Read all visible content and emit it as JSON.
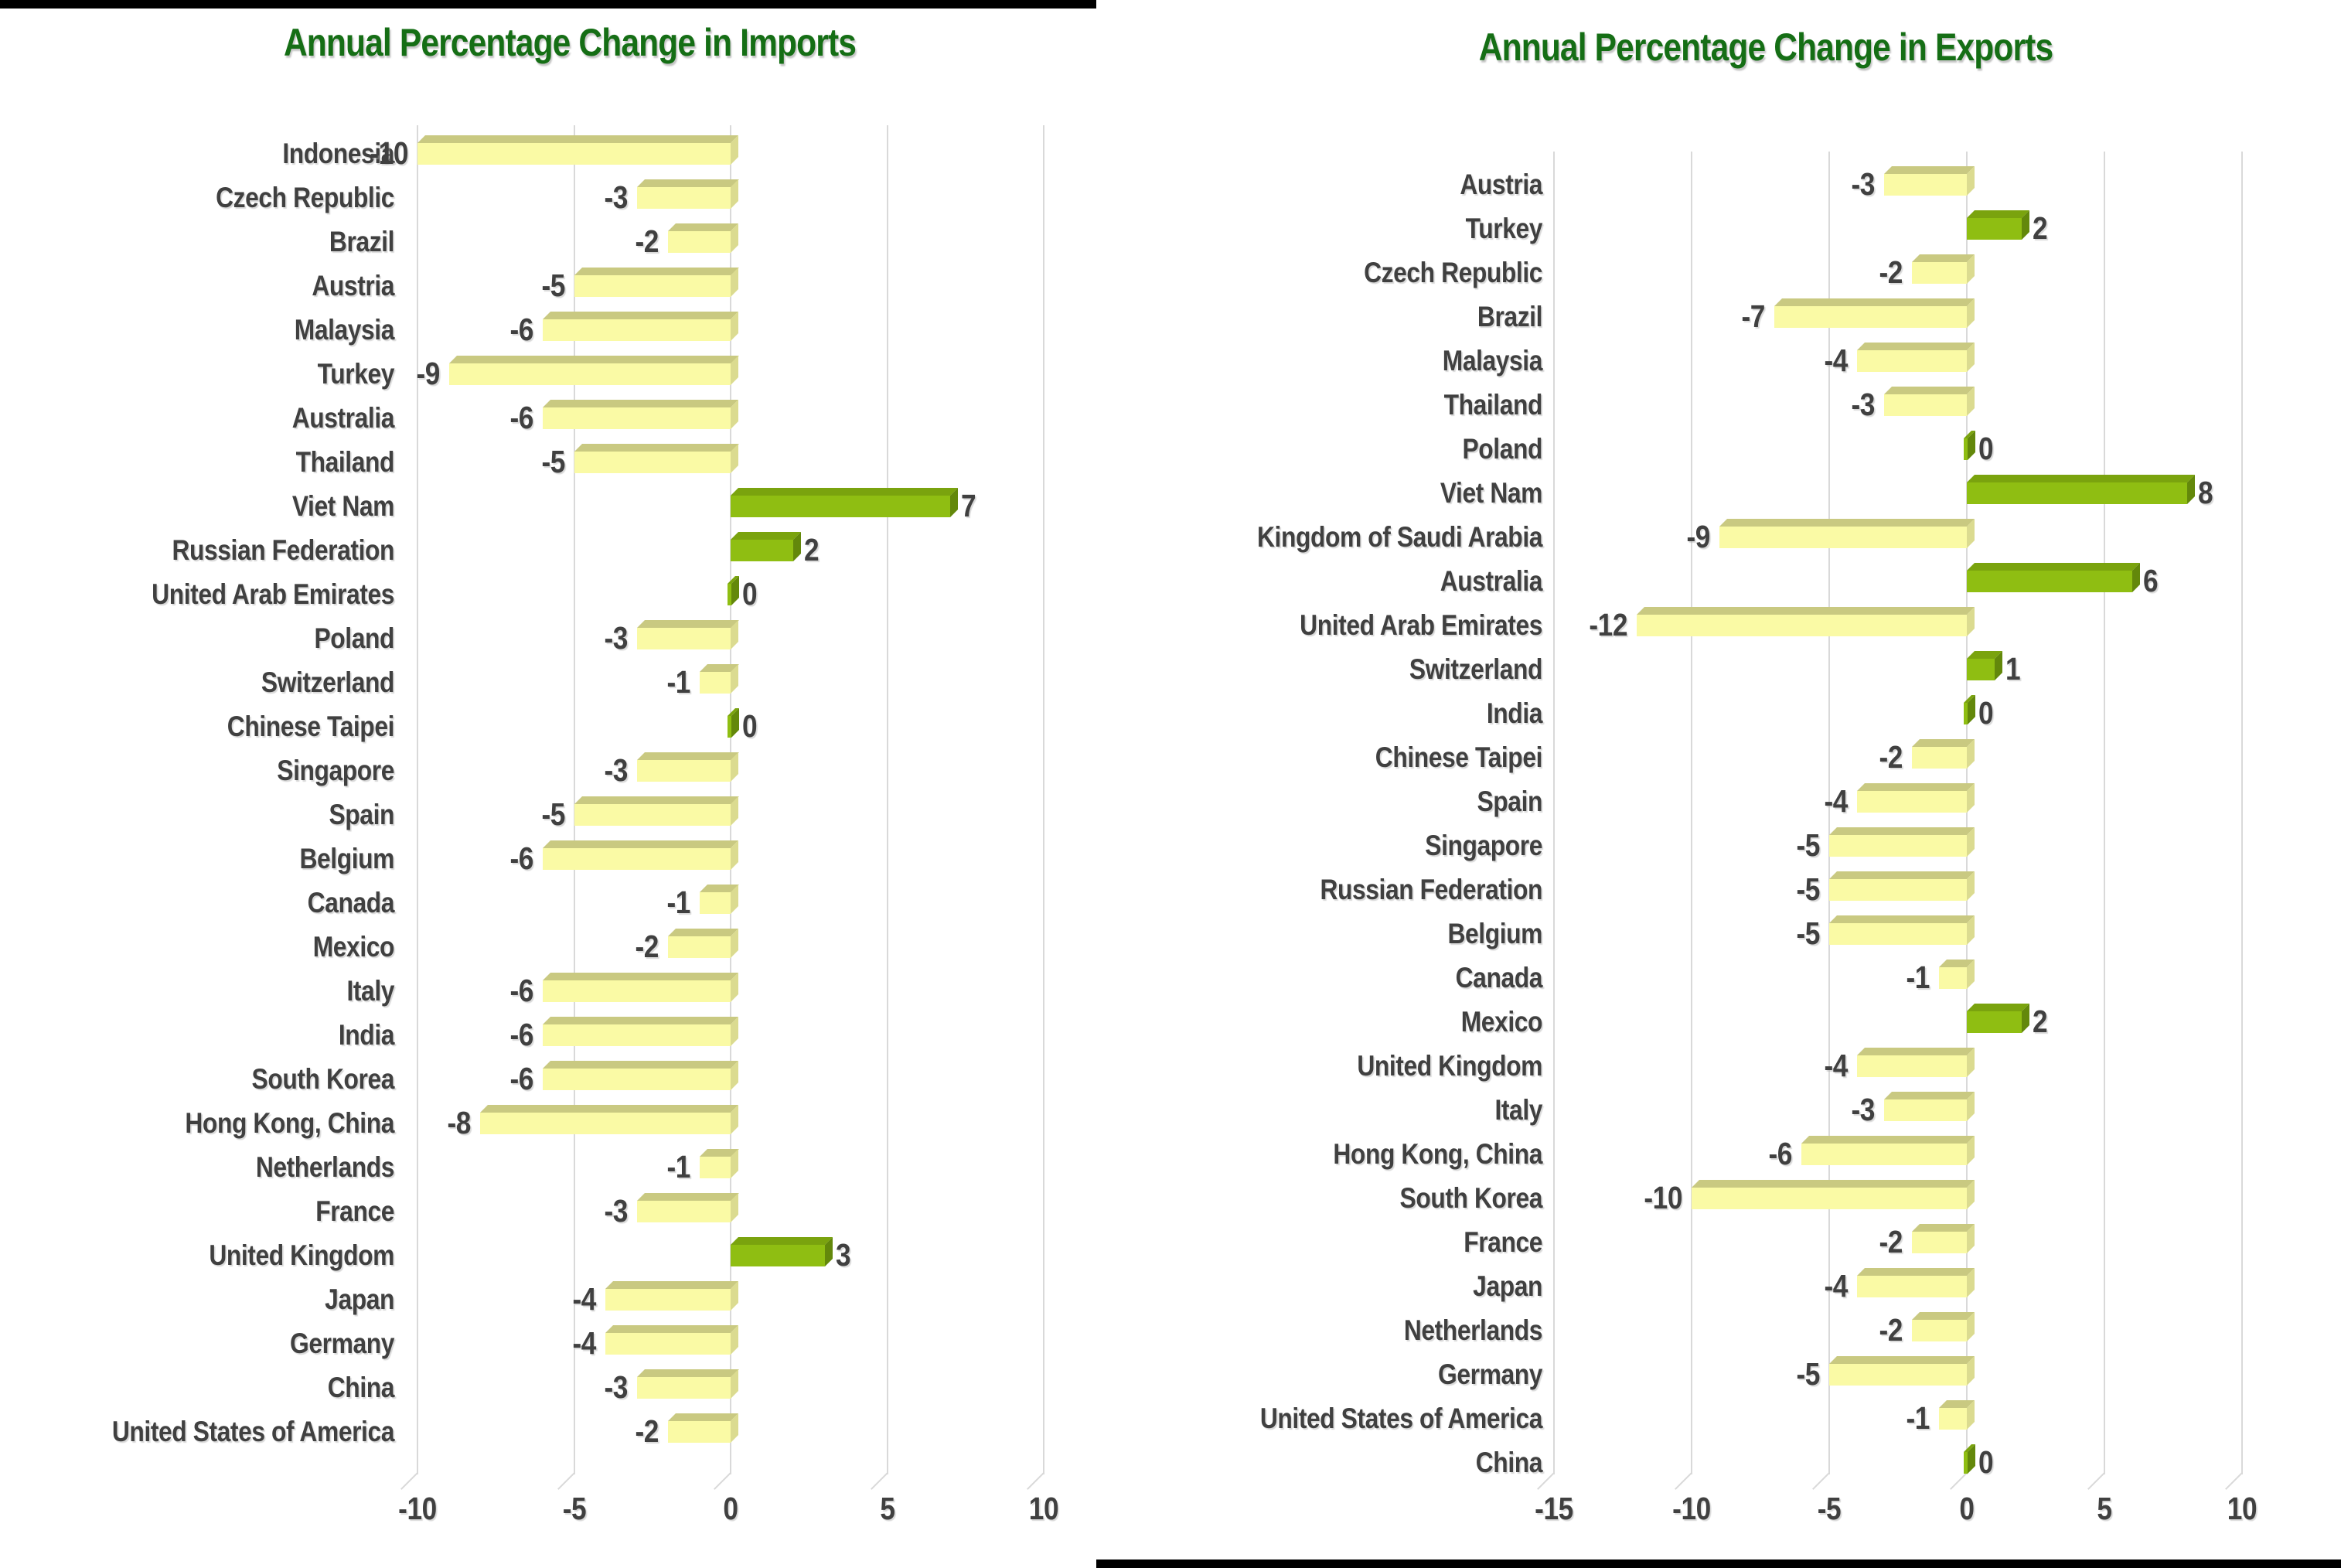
{
  "colors": {
    "title": "#156E15",
    "text": "#404040",
    "grid": "#D9D9D9",
    "divider": "#000000",
    "positive_bar": "#8FBE12",
    "positive_bar_top": "#7AA30E",
    "positive_bar_side": "#63880B",
    "negative_bar": "#FAFAA5",
    "negative_bar_top": "#C9C981",
    "negative_bar_side": "#DBDB90"
  },
  "chart_data": [
    {
      "type": "bar",
      "orientation": "horizontal",
      "title": "Annual Percentage Change in Imports",
      "xlabel": "",
      "ylabel": "",
      "xlim": [
        -10,
        10
      ],
      "xticks": [
        -10,
        -5,
        0,
        5,
        10
      ],
      "grid": true,
      "legend": "none",
      "data_labels": "outside-end",
      "categories": [
        "Indonesia",
        "Czech Republic",
        "Brazil",
        "Austria",
        "Malaysia",
        "Turkey",
        "Australia",
        "Thailand",
        "Viet Nam",
        "Russian Federation",
        "United Arab Emirates",
        "Poland",
        "Switzerland",
        "Chinese Taipei",
        "Singapore",
        "Spain",
        "Belgium",
        "Canada",
        "Mexico",
        "Italy",
        "India",
        "South Korea",
        "Hong Kong, China",
        "Netherlands",
        "France",
        "United Kingdom",
        "Japan",
        "Germany",
        "China",
        "United States of America"
      ],
      "values": [
        -10,
        -3,
        -2,
        -5,
        -6,
        -9,
        -6,
        -5,
        7,
        2,
        0,
        -3,
        -1,
        0,
        -3,
        -5,
        -6,
        -1,
        -2,
        -6,
        -6,
        -6,
        -8,
        -1,
        -3,
        3,
        -4,
        -4,
        -3,
        -2
      ]
    },
    {
      "type": "bar",
      "orientation": "horizontal",
      "title": "Annual Percentage Change in Exports",
      "xlabel": "",
      "ylabel": "",
      "xlim": [
        -15,
        10
      ],
      "xticks": [
        -15,
        -10,
        -5,
        0,
        5,
        10
      ],
      "grid": true,
      "legend": "none",
      "data_labels": "outside-end",
      "categories": [
        "Austria",
        "Turkey",
        "Czech Republic",
        "Brazil",
        "Malaysia",
        "Thailand",
        "Poland",
        "Viet Nam",
        "Kingdom of Saudi Arabia",
        "Australia",
        "United Arab Emirates",
        "Switzerland",
        "India",
        "Chinese Taipei",
        "Spain",
        "Singapore",
        "Russian Federation",
        "Belgium",
        "Canada",
        "Mexico",
        "United Kingdom",
        "Italy",
        "Hong Kong, China",
        "South Korea",
        "France",
        "Japan",
        "Netherlands",
        "Germany",
        "United States of America",
        "China"
      ],
      "values": [
        -3,
        2,
        -2,
        -7,
        -4,
        -3,
        0,
        8,
        -9,
        6,
        -12,
        1,
        0,
        -2,
        -4,
        -5,
        -5,
        -5,
        -1,
        2,
        -4,
        -3,
        -6,
        -10,
        -2,
        -4,
        -2,
        -5,
        -1,
        0
      ]
    }
  ]
}
